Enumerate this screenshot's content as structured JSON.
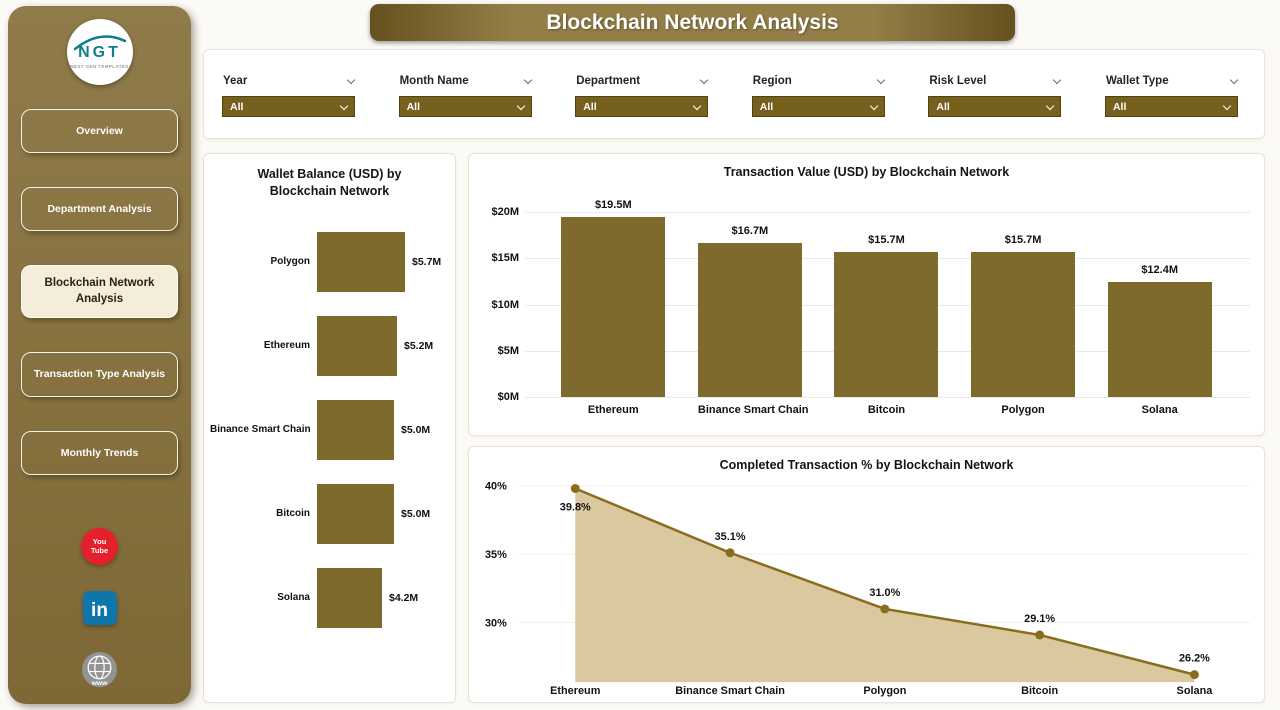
{
  "title": "Blockchain Network Analysis",
  "sidebar": {
    "logo": {
      "text": "NGT",
      "subtext": "NEXT GEN TEMPLATES"
    },
    "items": [
      {
        "label": "Overview",
        "active": false
      },
      {
        "label": "Department Analysis",
        "active": false
      },
      {
        "label": "Blockchain Network Analysis",
        "active": true
      },
      {
        "label": "Transaction Type Analysis",
        "active": false
      },
      {
        "label": "Monthly Trends",
        "active": false
      }
    ],
    "social": {
      "youtube_label": "You Tube",
      "linkedin_label": "in",
      "website_label": "www"
    }
  },
  "filters": [
    {
      "label": "Year",
      "value": "All"
    },
    {
      "label": "Month Name",
      "value": "All"
    },
    {
      "label": "Department",
      "value": "All"
    },
    {
      "label": "Region",
      "value": "All"
    },
    {
      "label": "Risk Level",
      "value": "All"
    },
    {
      "label": "Wallet Type",
      "value": "All"
    }
  ],
  "chart_data": [
    {
      "type": "bar",
      "orientation": "horizontal",
      "title": "Wallet Balance (USD) by Blockchain Network",
      "categories": [
        "Polygon",
        "Ethereum",
        "Binance Smart Chain",
        "Bitcoin",
        "Solana"
      ],
      "values": [
        5.7,
        5.2,
        5.0,
        5.0,
        4.2
      ],
      "labels": [
        "$5.7M",
        "$5.2M",
        "$5.0M",
        "$5.0M",
        "$4.2M"
      ],
      "unit": "USD millions",
      "legend": "none",
      "grid": false
    },
    {
      "type": "bar",
      "orientation": "vertical",
      "title": "Transaction Value (USD) by Blockchain Network",
      "categories": [
        "Ethereum",
        "Binance Smart Chain",
        "Bitcoin",
        "Polygon",
        "Solana"
      ],
      "values": [
        19.5,
        16.7,
        15.7,
        15.7,
        12.4
      ],
      "labels": [
        "$19.5M",
        "$16.7M",
        "$15.7M",
        "$15.7M",
        "$12.4M"
      ],
      "y_ticks": [
        "$20M",
        "$15M",
        "$10M",
        "$5M",
        "$0M"
      ],
      "ylim": [
        0,
        20
      ],
      "unit": "USD millions",
      "legend": "none",
      "grid": true
    },
    {
      "type": "area",
      "title": "Completed Transaction % by Blockchain Network",
      "categories": [
        "Ethereum",
        "Binance Smart Chain",
        "Polygon",
        "Bitcoin",
        "Solana"
      ],
      "values": [
        39.8,
        35.1,
        31.0,
        29.1,
        26.2
      ],
      "labels": [
        "39.8%",
        "35.1%",
        "31.0%",
        "29.1%",
        "26.2%"
      ],
      "y_ticks": [
        "40%",
        "35%",
        "30%"
      ],
      "ylim": [
        25,
        41
      ],
      "unit": "percent",
      "legend": "none",
      "grid": false
    }
  ],
  "colors": {
    "gold": "#7f6a2d",
    "dropdown": "#76601e",
    "sidebar_top": "#907b4a",
    "sidebar_bottom": "#7d6836",
    "active_bg": "#f4edda",
    "title_edge": "#64511e",
    "title_center": "#937e47",
    "line": "#8a6c1d",
    "area_fill": "#dac89e",
    "youtube": "#e3202b",
    "linkedin": "#0e76a8"
  }
}
